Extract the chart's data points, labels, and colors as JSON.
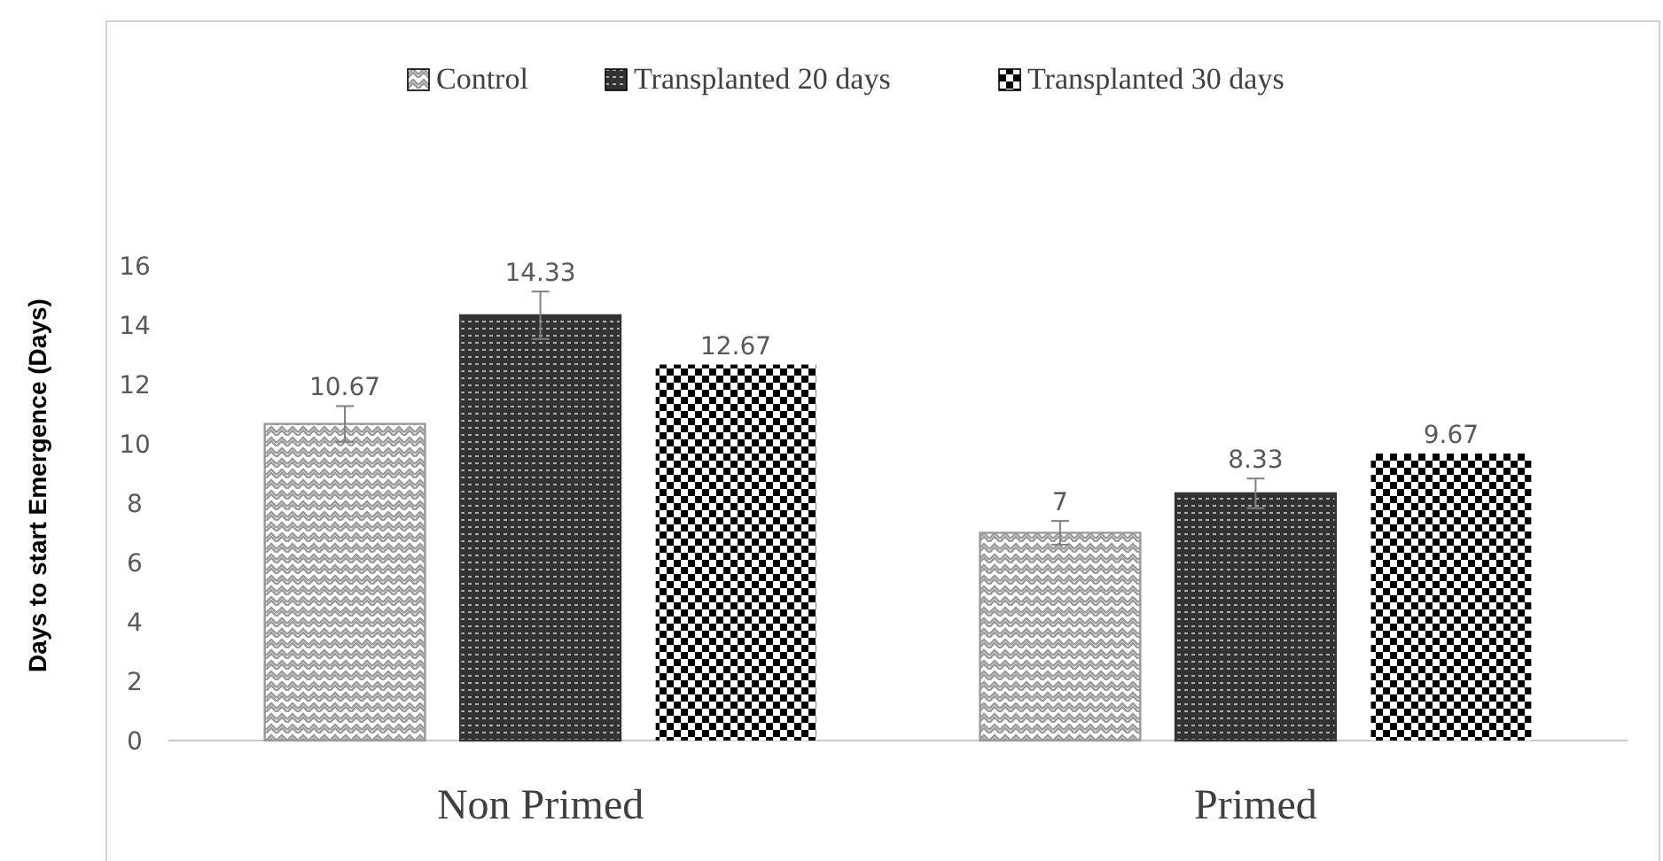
{
  "chart_data": {
    "type": "bar",
    "ylabel": "Days to start Emergence (Days)",
    "categories": [
      "Non Primed",
      "Primed"
    ],
    "series": [
      {
        "name": "Control",
        "color": "#9a9a9a",
        "values": [
          10.67,
          7
        ],
        "errors": [
          0.6,
          0.4
        ]
      },
      {
        "name": "Transplanted 20 days",
        "color": "#333333",
        "values": [
          14.33,
          8.33
        ],
        "errors": [
          0.8,
          0.5
        ]
      },
      {
        "name": "Transplanted 30 days",
        "color": "#000000",
        "values": [
          12.67,
          9.67
        ],
        "errors": [
          null,
          null
        ]
      }
    ],
    "ylim": [
      0,
      16
    ],
    "yticks": [
      0,
      2,
      4,
      6,
      8,
      10,
      12,
      14,
      16
    ],
    "data_labels": true,
    "legend": "top",
    "grid": false
  }
}
